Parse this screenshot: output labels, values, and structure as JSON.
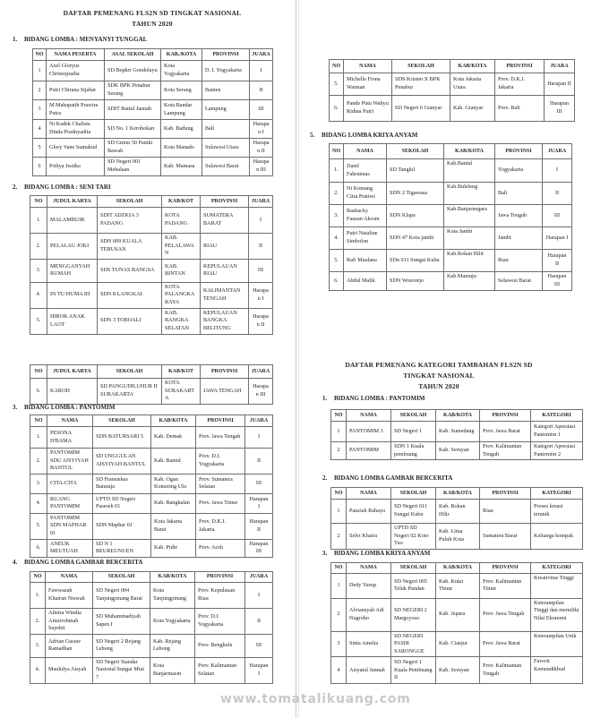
{
  "page": {
    "watermark": "www.tomatalikuang.com",
    "colors": {
      "text": "#262523",
      "table_border": "#6e6e6e",
      "divider_dark": "#c6c6c6",
      "divider_light": "#e8e8e8",
      "watermark": "#c9c9c9",
      "background": "#ffffff"
    }
  },
  "titles": {
    "main_line1": "DAFTAR PEMENANG FLS2N SD TINGKAT NASIONAL",
    "main_line2": "TAHUN 2020",
    "add_line1": "DAFTAR PEMENANG KATEGORI TAMBAHAN FLS2N SD",
    "add_line2": "TINGKAT NASIONAL",
    "add_line3": "TAHUN 2020"
  },
  "headings": {
    "s1": {
      "num": "1.",
      "text": "BIDANG LOMBA : MENYANYI TUNGGAL"
    },
    "s2": {
      "num": "2.",
      "text": "BIDANG LOMBA : SENI TARI"
    },
    "s3": {
      "num": "3.",
      "text": "BIDANG LOMBA : PANTOMIM"
    },
    "s4": {
      "num": "4.",
      "text": "BIDANG LOMBA GAMBAR BERCERITA"
    },
    "s5": {
      "num": "5.",
      "text": "BIDANG LOMBA KRIYA ANYAM"
    },
    "k1": {
      "num": "1.",
      "text": "BIDANG LOMBA : PANTOMIM"
    },
    "k2": {
      "num": "2.",
      "text": "BIDANG LOMBA GAMBAR BERCERITA"
    },
    "k3": {
      "num": "3.",
      "text": "BIDANG LOMBA KRIYA ANYAM"
    }
  },
  "tables": {
    "menyanyi": {
      "headers": [
        "NO",
        "NAMA PESERTA",
        "ASAL SEKOLAH",
        "KAB./KOTA",
        "PROVINSI",
        "JUARA"
      ],
      "rows": [
        [
          "1",
          "Axel Gloryus Christopradia",
          "SD Bopkri Gondolayu",
          "Kota Yogyakarta",
          "D. I. Yogyakarta",
          "I"
        ],
        [
          "2",
          "Putri Chirana Sijabat",
          "SDK BPK Penabur Serang",
          "Kota Serang",
          "Banten",
          "II"
        ],
        [
          "3",
          "M Mahapatih Prawira Putra",
          "SDIT Baitul Jannah",
          "Kota Bandar Lampung",
          "Lampung",
          "III"
        ],
        [
          "4",
          "Ni Kadek Chalista Dinda Pradnyadita",
          "SD No. 1 Kerobokan",
          "Kab. Badung",
          "Bali",
          "Harapan I"
        ],
        [
          "5",
          "Glory Vane Sumakud",
          "SD Gmim 50 Paniki Bawah",
          "Kota Manado",
          "Sulawesi Utara",
          "Harapan II"
        ],
        [
          "6",
          "Priliya Jestika",
          "SD Negeri 001 Mehalaan",
          "Kab. Mamasa",
          "Sulawesi Barat",
          "Harapan III"
        ]
      ]
    },
    "seni_tari": {
      "headers": [
        "NO",
        "JUDUL KARYA",
        "SEKOLAH",
        "KAB/KOT",
        "PROVINSI",
        "JUARA"
      ],
      "rows": [
        [
          "1.",
          "MALAMBUIK",
          "SDIT ADZKIA 3 PADANG",
          "KOTA PADANG",
          "SUMATERA BARAT",
          "I"
        ],
        [
          "2.",
          "PELALAU JOKI",
          "SDN 009 KUALA TERUSAN",
          "KAB. PELALAWAN",
          "RIAU",
          "II"
        ],
        [
          "3.",
          "MENGGANYAH RUMAH",
          "SDS TUNAS BANGSA",
          "KAB. BINTAN",
          "KEPULAUAN RIAU",
          "III"
        ],
        [
          "4.",
          "IN TU HUMA IH",
          "SDN 8 LANGKAI",
          "KOTA PALANGKA RAYA",
          "KALIMANTAN TENGAH",
          "Harapan I"
        ],
        [
          "5.",
          "HIROK ANAK LAOT",
          "SDN 3 TOBOALI",
          "KAB. BANGKA SELATAN",
          "KEPULAUAN BANGKA BELITUNG",
          "Harapan II"
        ]
      ]
    },
    "seni_tari_cont": {
      "headers": [
        "NO",
        "JUDUL KARYA",
        "SEKOLAH",
        "KAB/KOT",
        "PROVINSI",
        "JUARA"
      ],
      "rows": [
        [
          "6.",
          "KAROH",
          "SD PANGUDILUHUR II SURAKARTA",
          "KOTA SURAKARTA",
          "JAWA TENGAH",
          "Harapan III"
        ]
      ]
    },
    "pantomim": {
      "headers": [
        "NO",
        "NAMA",
        "SEKOLAH",
        "KAB/KOTA",
        "PROVINSI",
        "JUARA"
      ],
      "rows": [
        [
          "1.",
          "PESONA D'BAMA",
          "SDN BATURSARI 5",
          "Kab. Demak",
          "Prov. Jawa Tengah",
          "I"
        ],
        [
          "2.",
          "PANTOMIM SDU AISYIYAH BANTUL",
          "SD UNGGULAN AISYIYAH BANTUL",
          "Kab. Bantul",
          "Prov. D.I. Yogyakarta",
          "II"
        ],
        [
          "3.",
          "CITA-CITA",
          "SD Fransiskus Baturaja",
          "Kab. Ogan Komering Ulu",
          "Prov. Sumatera Selatan",
          "III"
        ],
        [
          "4.",
          "RUANG PANTOMIM",
          "UPTD SD Negeri Paseseh 01",
          "Kab. Bangkalan",
          "Prov. Jawa Timur",
          "Harapan I"
        ],
        [
          "5.",
          "PANTOMIM SDN MAPHAR 01",
          "SDN Maphar 01",
          "Kota Jakarta Barat",
          "Prov. D.K.I. Jakarta",
          "Harapan II"
        ],
        [
          "6.",
          "ANEUK MEUTUAH",
          "SD N 1 BEUREUNUEN",
          "Kab. Pidie",
          "Prov. Aceh",
          "Harapan III"
        ]
      ]
    },
    "gambar": {
      "headers": [
        "NO",
        "NAMA",
        "SEKOLAH",
        "KAB/KOTA",
        "PROVINSI",
        "JUARA"
      ],
      "rows": [
        [
          "1.",
          "Fawwazah Khairun Niswah",
          "SD Negeri 004 Tanjungpinang Barat",
          "Kota Tanjungpinang",
          "Prov. Kepulauan Riau",
          "I"
        ],
        [
          "2.",
          "Almira Windia Ainurrohmah Sayekti",
          "SD Muhammadiyah Sapen I",
          "Kota Yogyakarta",
          "Prov. D.I. Yogyakarta",
          "II"
        ],
        [
          "3.",
          "Adrian Gustav Ramadhan",
          "SD Negeri 2 Rejang Lebong",
          "Kab. Rejang Lebong",
          "Prov. Bengkulu",
          "III"
        ],
        [
          "4.",
          "Maulidya Aisyah",
          "SD Negeri Standar Nasional Sungai Miai 7",
          "Kota Banjarmasin",
          "Prov. Kalimantan Selatan",
          "Harapan I"
        ]
      ]
    },
    "gambar_cont": {
      "headers": [
        "NO",
        "NAMA",
        "SEKOLAH",
        "KAB/KOTA",
        "PROVINSI",
        "JUARA"
      ],
      "rows": [
        [
          "5.",
          "Michelle Fiona Waiman",
          "SDS Kristen X BPK Penabur",
          "Kota Jakarta Utara",
          "Prov. D.K.I. Jakarta",
          "Harapan II"
        ],
        [
          "6.",
          "Pande Putu Wahyu Ridina Putri",
          "SD Negeri 6 Gianyar",
          "Kab. Gianyar",
          "Prov. Bali",
          "Harapan III"
        ]
      ]
    },
    "kriya": {
      "headers": [
        "NO",
        "NAMA",
        "SEKOLAH",
        "KAB/KOTA",
        "PROVINSI",
        "JUARA"
      ],
      "rows": [
        [
          "1.",
          "Danif Fahrunnas",
          "SD Tangkil",
          "Kab.Bantul",
          "Yogyakarta",
          "I"
        ],
        [
          "2.",
          "Ni Komang Citra Pratiwi",
          "SDN 2 Tigawasa",
          "Kab.Buleleng",
          "Bali",
          "II"
        ],
        [
          "3.",
          "Bashacky Fauzan Akrom",
          "SDN Klapa",
          "Kab.Banjarnegara",
          "Jawa Tengah",
          "III"
        ],
        [
          "4.",
          "Putri Nataline Simbolon",
          "SDN 47 Kota jambi",
          "Kota Jambi",
          "Jambi",
          "Harapan I"
        ],
        [
          "5.",
          "Rafi Maulana",
          "SDn 011 Sungai Kubu",
          "Kab.Rokan Hilir",
          "Riau",
          "Harapan II"
        ],
        [
          "6.",
          "Abdul Malik",
          "SDN Wonorejo",
          "Kab.Mamuju",
          "Selawesi Barat",
          "Harapan III"
        ]
      ]
    },
    "kat_pantomim": {
      "headers": [
        "NO",
        "NAMA",
        "SEKOLAH",
        "KAB/KOTA",
        "PROVINSI",
        "KATEGORI"
      ],
      "rows": [
        [
          "1",
          "PANTOMIM 3",
          "SD Negeri 1",
          "Kab. Sumedang",
          "Prov. Jawa Barat",
          "Kategori Apresiasi Pantomim 1"
        ],
        [
          "2",
          "PANTOMIM",
          "SDN 1 Kuala pembuang",
          "Kab. Seruyan",
          "Prov. Kalimantan Tengah",
          "Kategori Apresiasi Pantomim 2"
        ]
      ]
    },
    "kat_gambar": {
      "headers": [
        "NO",
        "NAMA",
        "SEKOLAH",
        "KAB/KOTA",
        "PROVINSI",
        "KATEGORI"
      ],
      "rows": [
        [
          "1",
          "Pauziah Rahayu",
          "SD Negeri 011 Sungai Kubu",
          "Kab. Rokan Hilir",
          "Riau",
          "Proses kreasi terunik"
        ],
        [
          "2",
          "Selvi Khaira",
          "UPTD SD Negeri 02 Koto Tuo",
          "Kab. Lima Puluh Kota",
          "Sumatera Barat",
          "Keluarga kompak"
        ]
      ]
    },
    "kat_kriya": {
      "headers": [
        "NO",
        "NAMA",
        "SEKOLAH",
        "KAB/KOTA",
        "PROVINSI",
        "KATEGORI"
      ],
      "rows": [
        [
          "1",
          "Dedy Yusup",
          "SD Negeri 005 Teluk Pandan",
          "Kab. Kutai Timur",
          "Prov. Kalimantan Timur",
          "Kreativitas Tinggi"
        ],
        [
          "2",
          "Alviansyah Adi Nugroho",
          "SD NEGERI 2 Margoyoso",
          "Kab. Jepara",
          "Prov. Jawa Tengah",
          "Keterampilan Tinggi dan memiliki Nilai Ekonomi"
        ],
        [
          "3",
          "Sinta Amelia",
          "SD NEGERI PASIR SARONGGE",
          "Kab. Cianjur",
          "Prov. Jawa Barat",
          "Keterampilan Unik"
        ],
        [
          "4",
          "Aisyatul Jannah",
          "SD Negeri 1 Kuala Pembuang II",
          "Kab. Seruyan",
          "Prov. Kalimantan Tengah",
          "Favorit Kemendikbud"
        ]
      ]
    }
  }
}
